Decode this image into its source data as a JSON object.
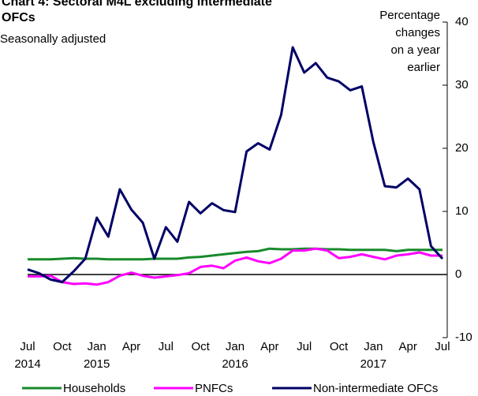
{
  "chart_data": {
    "type": "line",
    "title": [
      "Chart 4: Sectoral M4L excluding intermediate",
      "OFCs"
    ],
    "subtitle": "Seasonally adjusted",
    "ylabel": [
      "Percentage",
      "changes",
      "on a year",
      "earlier"
    ],
    "categories": [
      "Jul",
      null,
      null,
      "Oct",
      null,
      null,
      "Jan",
      null,
      null,
      "Apr",
      null,
      null,
      "Jul",
      null,
      null,
      "Oct",
      null,
      null,
      "Jan",
      null,
      null,
      "Apr",
      null,
      null,
      "Jul",
      null,
      null,
      "Oct",
      null,
      null,
      "Jan",
      null,
      null,
      "Apr",
      null,
      null,
      "Jul"
    ],
    "category_years": [
      "2014",
      null,
      null,
      null,
      null,
      null,
      "2015",
      null,
      null,
      null,
      null,
      null,
      null,
      null,
      null,
      null,
      null,
      null,
      "2016",
      null,
      null,
      null,
      null,
      null,
      null,
      null,
      null,
      null,
      null,
      null,
      "2017",
      null,
      null,
      null,
      null,
      null,
      null
    ],
    "series": [
      {
        "name": "Households",
        "color": "#178a2b",
        "values": [
          2.4,
          2.4,
          2.4,
          2.5,
          2.6,
          2.5,
          2.5,
          2.4,
          2.4,
          2.4,
          2.4,
          2.5,
          2.5,
          2.5,
          2.7,
          2.8,
          3.0,
          3.2,
          3.4,
          3.6,
          3.7,
          4.1,
          4.0,
          4.0,
          4.1,
          4.1,
          4.0,
          4.0,
          3.9,
          3.9,
          3.9,
          3.9,
          3.7,
          3.9,
          3.9,
          3.9,
          3.9
        ]
      },
      {
        "name": "PNFCs",
        "color": "#ff00ff",
        "values": [
          -0.3,
          -0.3,
          -0.2,
          -1.2,
          -1.5,
          -1.4,
          -1.6,
          -1.2,
          -0.2,
          0.3,
          -0.2,
          -0.5,
          -0.3,
          -0.1,
          0.2,
          1.2,
          1.4,
          1.0,
          2.2,
          2.7,
          2.1,
          1.8,
          2.5,
          3.8,
          3.8,
          4.1,
          3.8,
          2.6,
          2.8,
          3.2,
          2.8,
          2.4,
          3.0,
          3.2,
          3.5,
          3.0,
          3.0
        ]
      },
      {
        "name": "Non-intermediate OFCs",
        "color": "#000066",
        "values": [
          0.8,
          0.2,
          -0.8,
          -1.2,
          0.5,
          2.5,
          9,
          6,
          13.5,
          10.3,
          8.2,
          2.5,
          7.5,
          5.2,
          11.5,
          9.7,
          11.3,
          10.2,
          9.9,
          19.5,
          20.8,
          19.8,
          25.3,
          36,
          32,
          33.5,
          31.2,
          30.6,
          29.2,
          29.8,
          21,
          14,
          13.8,
          15.2,
          13.5,
          4.5,
          2.5
        ]
      }
    ],
    "ylim": [
      -10,
      40
    ],
    "yticks": [
      -10,
      0,
      10,
      20,
      30,
      40
    ],
    "zero_line": true,
    "legend": "bottom"
  }
}
